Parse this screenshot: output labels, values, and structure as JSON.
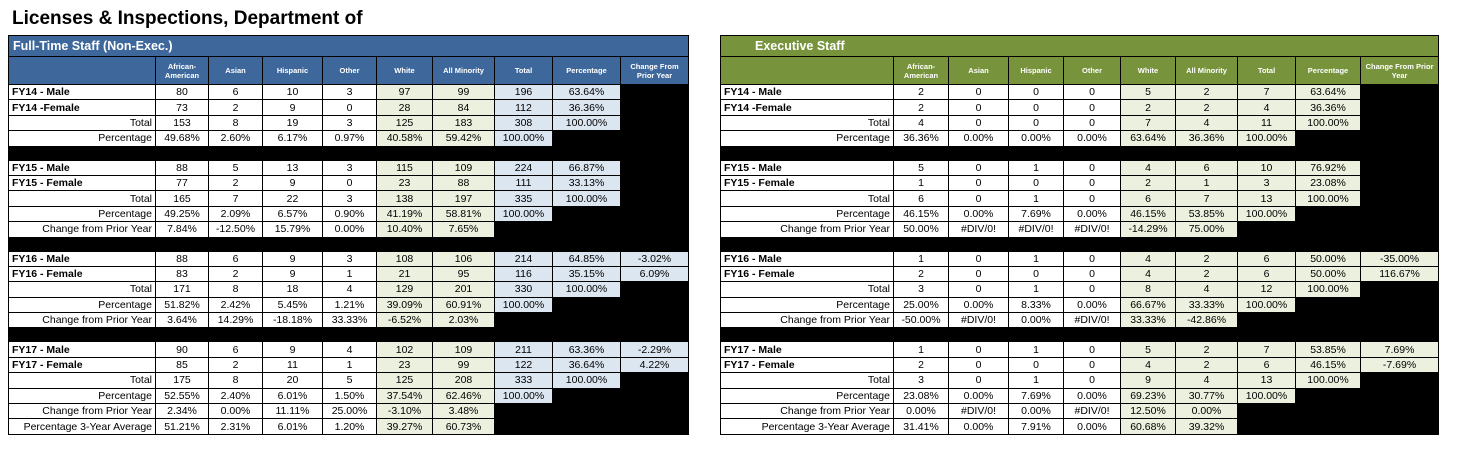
{
  "title": "Licenses & Inspections, Department of",
  "panels": [
    {
      "title": "Full-Time Staff (Non-Exec.)",
      "columns": [
        "African-American",
        "Asian",
        "Hispanic",
        "Other",
        "White",
        "All Minority",
        "Total",
        "Percentage",
        "Change From Prior Year"
      ],
      "blocks": [
        [
          {
            "label": "FY14 - Male",
            "cells": [
              "80",
              "6",
              "10",
              "3",
              "97",
              "99",
              "196",
              "63.64%"
            ]
          },
          {
            "label": "FY14 -Female",
            "cells": [
              "73",
              "2",
              "9",
              "0",
              "28",
              "84",
              "112",
              "36.36%"
            ]
          },
          {
            "label": "Total",
            "cells": [
              "153",
              "8",
              "19",
              "3",
              "125",
              "183",
              "308",
              "100.00%"
            ]
          },
          {
            "label": "Percentage",
            "cells": [
              "49.68%",
              "2.60%",
              "6.17%",
              "0.97%",
              "40.58%",
              "59.42%",
              "100.00%"
            ]
          }
        ],
        [
          {
            "label": "FY15 - Male",
            "cells": [
              "88",
              "5",
              "13",
              "3",
              "115",
              "109",
              "224",
              "66.87%"
            ]
          },
          {
            "label": "FY15 - Female",
            "cells": [
              "77",
              "2",
              "9",
              "0",
              "23",
              "88",
              "111",
              "33.13%"
            ]
          },
          {
            "label": "Total",
            "cells": [
              "165",
              "7",
              "22",
              "3",
              "138",
              "197",
              "335",
              "100.00%"
            ]
          },
          {
            "label": "Percentage",
            "cells": [
              "49.25%",
              "2.09%",
              "6.57%",
              "0.90%",
              "41.19%",
              "58.81%",
              "100.00%"
            ]
          },
          {
            "label": "Change from Prior Year",
            "cells": [
              "7.84%",
              "-12.50%",
              "15.79%",
              "0.00%",
              "10.40%",
              "7.65%"
            ]
          }
        ],
        [
          {
            "label": "FY16 - Male",
            "cells": [
              "88",
              "6",
              "9",
              "3",
              "108",
              "106",
              "214",
              "64.85%",
              "-3.02%"
            ]
          },
          {
            "label": "FY16 - Female",
            "cells": [
              "83",
              "2",
              "9",
              "1",
              "21",
              "95",
              "116",
              "35.15%",
              "6.09%"
            ]
          },
          {
            "label": "Total",
            "cells": [
              "171",
              "8",
              "18",
              "4",
              "129",
              "201",
              "330",
              "100.00%"
            ]
          },
          {
            "label": "Percentage",
            "cells": [
              "51.82%",
              "2.42%",
              "5.45%",
              "1.21%",
              "39.09%",
              "60.91%",
              "100.00%"
            ]
          },
          {
            "label": "Change from Prior Year",
            "cells": [
              "3.64%",
              "14.29%",
              "-18.18%",
              "33.33%",
              "-6.52%",
              "2.03%"
            ]
          }
        ],
        [
          {
            "label": "FY17 - Male",
            "cells": [
              "90",
              "6",
              "9",
              "4",
              "102",
              "109",
              "211",
              "63.36%",
              "-2.29%"
            ]
          },
          {
            "label": "FY17 - Female",
            "cells": [
              "85",
              "2",
              "11",
              "1",
              "23",
              "99",
              "122",
              "36.64%",
              "4.22%"
            ]
          },
          {
            "label": "Total",
            "cells": [
              "175",
              "8",
              "20",
              "5",
              "125",
              "208",
              "333",
              "100.00%"
            ]
          },
          {
            "label": "Percentage",
            "cells": [
              "52.55%",
              "2.40%",
              "6.01%",
              "1.50%",
              "37.54%",
              "62.46%",
              "100.00%"
            ]
          },
          {
            "label": "Change from Prior Year",
            "cells": [
              "2.34%",
              "0.00%",
              "11.11%",
              "25.00%",
              "-3.10%",
              "3.48%"
            ]
          },
          {
            "label": "Percentage 3-Year Average",
            "cells": [
              "51.21%",
              "2.31%",
              "6.01%",
              "1.20%",
              "39.27%",
              "60.73%"
            ]
          }
        ]
      ]
    },
    {
      "title": "Executive Staff",
      "columns": [
        "African-American",
        "Asian",
        "Hispanic",
        "Other",
        "White",
        "All Minority",
        "Total",
        "Percentage",
        "Change From Prior Year"
      ],
      "blocks": [
        [
          {
            "label": "FY14 - Male",
            "cells": [
              "2",
              "0",
              "0",
              "0",
              "5",
              "2",
              "7",
              "63.64%"
            ]
          },
          {
            "label": "FY14 -Female",
            "cells": [
              "2",
              "0",
              "0",
              "0",
              "2",
              "2",
              "4",
              "36.36%"
            ]
          },
          {
            "label": "Total",
            "cells": [
              "4",
              "0",
              "0",
              "0",
              "7",
              "4",
              "11",
              "100.00%"
            ]
          },
          {
            "label": "Percentage",
            "cells": [
              "36.36%",
              "0.00%",
              "0.00%",
              "0.00%",
              "63.64%",
              "36.36%",
              "100.00%"
            ]
          }
        ],
        [
          {
            "label": "FY15 - Male",
            "cells": [
              "5",
              "0",
              "1",
              "0",
              "4",
              "6",
              "10",
              "76.92%"
            ]
          },
          {
            "label": "FY15 - Female",
            "cells": [
              "1",
              "0",
              "0",
              "0",
              "2",
              "1",
              "3",
              "23.08%"
            ]
          },
          {
            "label": "Total",
            "cells": [
              "6",
              "0",
              "1",
              "0",
              "6",
              "7",
              "13",
              "100.00%"
            ]
          },
          {
            "label": "Percentage",
            "cells": [
              "46.15%",
              "0.00%",
              "7.69%",
              "0.00%",
              "46.15%",
              "53.85%",
              "100.00%"
            ]
          },
          {
            "label": "Change from Prior Year",
            "cells": [
              "50.00%",
              "#DIV/0!",
              "#DIV/0!",
              "#DIV/0!",
              "-14.29%",
              "75.00%"
            ]
          }
        ],
        [
          {
            "label": "FY16 - Male",
            "cells": [
              "1",
              "0",
              "1",
              "0",
              "4",
              "2",
              "6",
              "50.00%",
              "-35.00%"
            ]
          },
          {
            "label": "FY16 - Female",
            "cells": [
              "2",
              "0",
              "0",
              "0",
              "4",
              "2",
              "6",
              "50.00%",
              "116.67%"
            ]
          },
          {
            "label": "Total",
            "cells": [
              "3",
              "0",
              "1",
              "0",
              "8",
              "4",
              "12",
              "100.00%"
            ]
          },
          {
            "label": "Percentage",
            "cells": [
              "25.00%",
              "0.00%",
              "8.33%",
              "0.00%",
              "66.67%",
              "33.33%",
              "100.00%"
            ]
          },
          {
            "label": "Change from Prior Year",
            "cells": [
              "-50.00%",
              "#DIV/0!",
              "0.00%",
              "#DIV/0!",
              "33.33%",
              "-42.86%"
            ]
          }
        ],
        [
          {
            "label": "FY17 - Male",
            "cells": [
              "1",
              "0",
              "1",
              "0",
              "5",
              "2",
              "7",
              "53.85%",
              "7.69%"
            ]
          },
          {
            "label": "FY17 - Female",
            "cells": [
              "2",
              "0",
              "0",
              "0",
              "4",
              "2",
              "6",
              "46.15%",
              "-7.69%"
            ]
          },
          {
            "label": "Total",
            "cells": [
              "3",
              "0",
              "1",
              "0",
              "9",
              "4",
              "13",
              "100.00%"
            ]
          },
          {
            "label": "Percentage",
            "cells": [
              "23.08%",
              "0.00%",
              "7.69%",
              "0.00%",
              "69.23%",
              "30.77%",
              "100.00%"
            ]
          },
          {
            "label": "Change from Prior Year",
            "cells": [
              "0.00%",
              "#DIV/0!",
              "0.00%",
              "#DIV/0!",
              "12.50%",
              "0.00%"
            ]
          },
          {
            "label": "Percentage 3-Year Average",
            "cells": [
              "31.41%",
              "0.00%",
              "7.91%",
              "0.00%",
              "60.68%",
              "39.32%"
            ]
          }
        ]
      ]
    }
  ]
}
